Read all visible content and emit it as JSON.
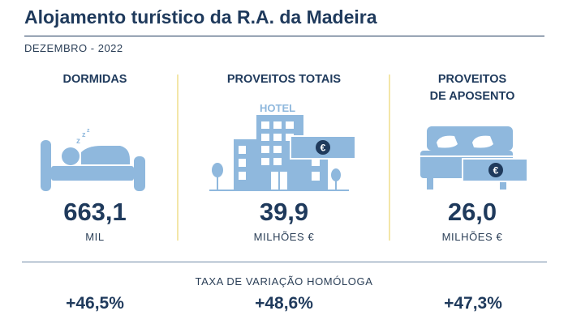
{
  "header": {
    "title": "Alojamento turístico da R.A. da Madeira",
    "subtitle": "DEZEMBRO - 2022"
  },
  "colors": {
    "navy": "#1f3a5c",
    "icon_blue": "#8fb8dd",
    "separator": "#f3e6a8"
  },
  "indicators": [
    {
      "label": "DORMIDAS",
      "value": "663,1",
      "unit": "MIL",
      "change": "+46,5%",
      "icon": "sleeping-person-icon"
    },
    {
      "label": "PROVEITOS TOTAIS",
      "value": "39,9",
      "unit": "MILHÕES €",
      "change": "+48,6%",
      "icon": "hotel-building-icon",
      "icon_text": "HOTEL",
      "euro": "€"
    },
    {
      "label": "PROVEITOS\nDE APOSENTO",
      "label_line1": "PROVEITOS",
      "label_line2": "DE APOSENTO",
      "value": "26,0",
      "unit": "MILHÕES €",
      "change": "+47,3%",
      "icon": "bed-icon",
      "euro": "€"
    }
  ],
  "footer": {
    "label": "TAXA DE VARIAÇÃO HOMÓLOGA"
  }
}
